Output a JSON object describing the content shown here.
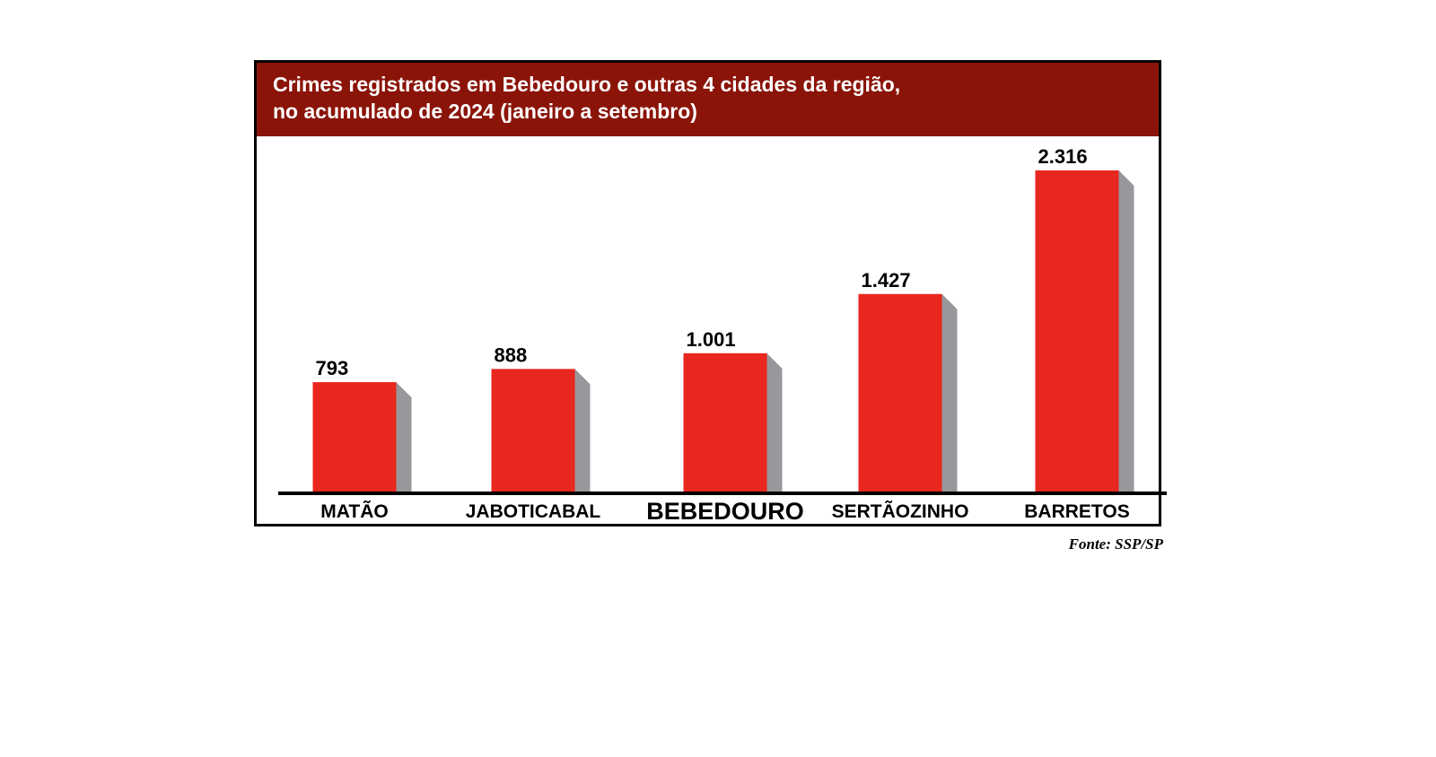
{
  "chart_data": {
    "type": "bar",
    "title": "Crimes registrados em Bebedouro e outras 4 cidades da região, no acumulado de 2024 (janeiro a setembro)",
    "categories": [
      "MATÃO",
      "JABOTICABAL",
      "BEBEDOURO",
      "SERTÃOZINHO",
      "BARRETOS"
    ],
    "values": [
      793,
      888,
      1001,
      1427,
      2316
    ],
    "value_labels": [
      "793",
      "888",
      "1.001",
      "1.427",
      "2.316"
    ],
    "highlighted_category": "BEBEDOURO",
    "xlabel": "",
    "ylabel": "",
    "ylim": [
      0,
      2316
    ],
    "grid": false,
    "legend": "none",
    "source": "Fonte: SSP/SP",
    "colors": {
      "bar": "#e8271f",
      "bar_side": "#98979c",
      "header": "#8b1409",
      "axis": "#000000"
    }
  }
}
